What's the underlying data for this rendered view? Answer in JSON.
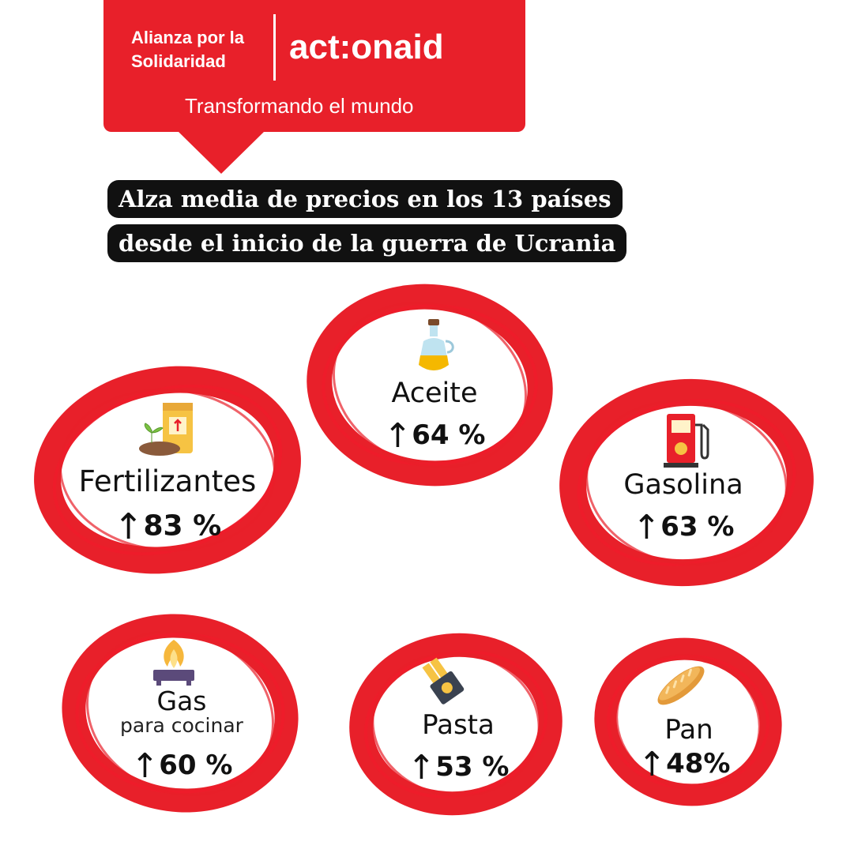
{
  "header": {
    "org_line1": "Alianza por la",
    "org_line2": "Solidaridad",
    "brand": "act:onaid",
    "tagline": "Transformando el mundo"
  },
  "title": {
    "line1": "Alza media de precios en los 13 países",
    "line2": "desde el inicio de la guerra de Ucrania"
  },
  "colors": {
    "accent": "#e8202a",
    "title_bg": "#111111",
    "text": "#111111"
  },
  "items": {
    "fertilizantes": {
      "label": "Fertilizantes",
      "arrow": "↑",
      "value": "83 %",
      "icon": "fertilizer-sack-icon"
    },
    "aceite": {
      "label": "Aceite",
      "arrow": "↑",
      "value": "64 %",
      "icon": "oil-bottle-icon"
    },
    "gasolina": {
      "label": "Gasolina",
      "arrow": "↑",
      "value": "63 %",
      "icon": "fuel-pump-icon"
    },
    "gas": {
      "label": "Gas",
      "sublabel": "para cocinar",
      "arrow": "↑",
      "value": "60 %",
      "icon": "gas-stove-icon"
    },
    "pasta": {
      "label": "Pasta",
      "arrow": "↑",
      "value": "53 %",
      "icon": "pasta-pack-icon"
    },
    "pan": {
      "label": "Pan",
      "arrow": "↑",
      "value": "48%",
      "icon": "bread-icon"
    }
  }
}
